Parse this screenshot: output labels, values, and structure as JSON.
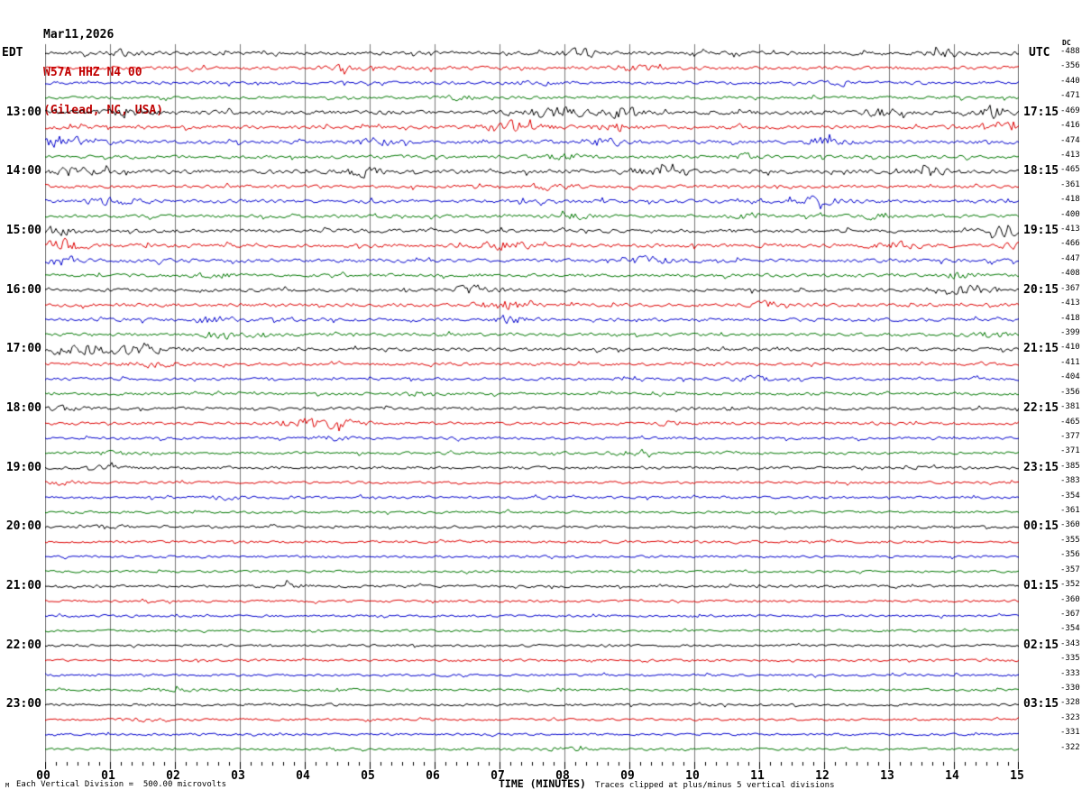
{
  "header": {
    "date": "Mar11,2026",
    "station": "W57A HHZ N4 00",
    "location": "(Gilead, NC, USA)"
  },
  "axes": {
    "left_tz": "EDT",
    "right_tz": "UTC",
    "dc_label": "DC",
    "x_title": "TIME (MINUTES)",
    "x_ticks": [
      "00",
      "01",
      "02",
      "03",
      "04",
      "05",
      "06",
      "07",
      "08",
      "09",
      "10",
      "11",
      "12",
      "13",
      "14",
      "15"
    ]
  },
  "footer": {
    "left_note": "Each Vertical Division =  500.00 microvolts",
    "right_note": "Traces clipped at plus/minus 5 vertical divisions",
    "corner_mark": "M"
  },
  "chart_data": {
    "type": "line",
    "subtype": "helicorder-seismogram",
    "title": "W57A HHZ N4 00 (Gilead, NC, USA) Mar11,2026",
    "xlabel": "TIME (MINUTES)",
    "x_range_minutes": [
      0,
      15
    ],
    "major_tick_minutes": 1,
    "minor_ticks_per_minute": 6,
    "row_duration_minutes": 15,
    "left_time_zone": "EDT",
    "right_time_zone": "UTC",
    "vertical_division_microvolts": 500.0,
    "clip_divisions": 5,
    "grid_color": "#787878",
    "trace_colors": {
      "black": "#000000",
      "red": "#dd0000",
      "blue": "#0000cc",
      "green": "#007700"
    },
    "rows": [
      {
        "edt": "",
        "utc": "",
        "dc": -488,
        "color": "black",
        "amp": 2.6,
        "events": [
          [
            1.2,
            2.2,
            0.15
          ],
          [
            8.3,
            1.8,
            0.2
          ],
          [
            13.9,
            1.6,
            0.15
          ]
        ]
      },
      {
        "edt": "",
        "utc": "",
        "dc": -356,
        "color": "red",
        "amp": 2.4,
        "events": [
          [
            4.6,
            1.5,
            0.2
          ],
          [
            9.0,
            1.2,
            0.3
          ]
        ]
      },
      {
        "edt": "",
        "utc": "",
        "dc": -440,
        "color": "blue",
        "amp": 2.2,
        "events": [
          [
            7.5,
            1.2,
            0.2
          ],
          [
            12.2,
            1.4,
            0.15
          ]
        ]
      },
      {
        "edt": "",
        "utc": "",
        "dc": -471,
        "color": "green",
        "amp": 2.0,
        "events": [
          [
            6.4,
            1.5,
            0.15
          ]
        ]
      },
      {
        "edt": "13:00",
        "utc": "17:15",
        "dc": -469,
        "color": "black",
        "amp": 2.8,
        "events": [
          [
            1.3,
            2.0,
            0.2
          ],
          [
            7.9,
            2.4,
            0.35
          ],
          [
            8.9,
            2.2,
            0.2
          ],
          [
            12.9,
            1.6,
            0.2
          ],
          [
            14.6,
            2.6,
            0.15
          ]
        ]
      },
      {
        "edt": "",
        "utc": "",
        "dc": -416,
        "color": "red",
        "amp": 2.6,
        "events": [
          [
            7.2,
            2.6,
            0.3
          ],
          [
            8.8,
            1.8,
            0.2
          ],
          [
            14.7,
            2.2,
            0.2
          ]
        ]
      },
      {
        "edt": "",
        "utc": "",
        "dc": -474,
        "color": "blue",
        "amp": 2.6,
        "events": [
          [
            0.3,
            2.6,
            0.25
          ],
          [
            5.1,
            1.6,
            0.2
          ],
          [
            8.6,
            1.8,
            0.25
          ],
          [
            12.0,
            1.8,
            0.2
          ]
        ]
      },
      {
        "edt": "",
        "utc": "",
        "dc": -413,
        "color": "green",
        "amp": 2.3,
        "events": [
          [
            8.0,
            1.5,
            0.2
          ],
          [
            10.8,
            1.6,
            0.15
          ]
        ]
      },
      {
        "edt": "14:00",
        "utc": "18:15",
        "dc": -465,
        "color": "black",
        "amp": 2.7,
        "events": [
          [
            0.5,
            1.8,
            0.3
          ],
          [
            4.9,
            2.0,
            0.2
          ],
          [
            9.4,
            1.6,
            0.3
          ],
          [
            13.6,
            1.8,
            0.25
          ]
        ]
      },
      {
        "edt": "",
        "utc": "",
        "dc": -361,
        "color": "red",
        "amp": 2.3,
        "events": [
          [
            7.7,
            1.4,
            0.3
          ]
        ]
      },
      {
        "edt": "",
        "utc": "",
        "dc": -418,
        "color": "blue",
        "amp": 2.5,
        "events": [
          [
            1.1,
            2.2,
            0.3
          ],
          [
            11.9,
            2.4,
            0.2
          ]
        ]
      },
      {
        "edt": "",
        "utc": "",
        "dc": -400,
        "color": "green",
        "amp": 2.2,
        "events": [
          [
            8.1,
            1.6,
            0.2
          ],
          [
            10.8,
            1.8,
            0.15
          ],
          [
            12.8,
            1.7,
            0.15
          ]
        ]
      },
      {
        "edt": "15:00",
        "utc": "19:15",
        "dc": -413,
        "color": "black",
        "amp": 2.5,
        "events": [
          [
            0.2,
            2.0,
            0.2
          ],
          [
            14.8,
            3.0,
            0.2
          ]
        ]
      },
      {
        "edt": "",
        "utc": "",
        "dc": -466,
        "color": "red",
        "amp": 2.6,
        "events": [
          [
            0.3,
            2.6,
            0.25
          ],
          [
            7.0,
            2.0,
            0.3
          ],
          [
            13.1,
            1.6,
            0.2
          ],
          [
            14.9,
            2.0,
            0.1
          ]
        ]
      },
      {
        "edt": "",
        "utc": "",
        "dc": -447,
        "color": "blue",
        "amp": 2.5,
        "events": [
          [
            0.2,
            2.4,
            0.2
          ],
          [
            9.3,
            1.6,
            0.25
          ]
        ]
      },
      {
        "edt": "",
        "utc": "",
        "dc": -408,
        "color": "green",
        "amp": 2.2,
        "events": [
          [
            2.6,
            1.5,
            0.2
          ],
          [
            14.1,
            1.8,
            0.2
          ]
        ]
      },
      {
        "edt": "16:00",
        "utc": "20:15",
        "dc": -367,
        "color": "black",
        "amp": 2.4,
        "events": [
          [
            6.6,
            2.0,
            0.25
          ],
          [
            14.3,
            2.4,
            0.25
          ]
        ]
      },
      {
        "edt": "",
        "utc": "",
        "dc": -413,
        "color": "red",
        "amp": 2.4,
        "events": [
          [
            7.1,
            1.8,
            0.3
          ],
          [
            11.2,
            1.6,
            0.25
          ]
        ]
      },
      {
        "edt": "",
        "utc": "",
        "dc": -418,
        "color": "blue",
        "amp": 2.3,
        "events": [
          [
            2.6,
            1.8,
            0.25
          ],
          [
            7.2,
            1.6,
            0.2
          ]
        ]
      },
      {
        "edt": "",
        "utc": "",
        "dc": -399,
        "color": "green",
        "amp": 2.2,
        "events": [
          [
            2.7,
            2.2,
            0.2
          ],
          [
            3.3,
            1.6,
            0.15
          ],
          [
            14.6,
            1.4,
            0.2
          ]
        ]
      },
      {
        "edt": "17:00",
        "utc": "21:15",
        "dc": -410,
        "color": "black",
        "amp": 2.4,
        "events": [
          [
            0.5,
            2.6,
            0.5
          ],
          [
            1.5,
            2.0,
            0.3
          ]
        ]
      },
      {
        "edt": "",
        "utc": "",
        "dc": -411,
        "color": "red",
        "amp": 2.1,
        "events": [
          [
            1.7,
            2.2,
            0.25
          ]
        ]
      },
      {
        "edt": "",
        "utc": "",
        "dc": -404,
        "color": "blue",
        "amp": 2.0,
        "events": [
          [
            10.9,
            1.5,
            0.2
          ]
        ]
      },
      {
        "edt": "",
        "utc": "",
        "dc": -356,
        "color": "green",
        "amp": 1.9,
        "events": [
          [
            5.7,
            1.3,
            0.2
          ]
        ]
      },
      {
        "edt": "18:00",
        "utc": "22:15",
        "dc": -381,
        "color": "black",
        "amp": 2.0,
        "events": [
          [
            0.3,
            1.5,
            0.2
          ],
          [
            10.6,
            1.4,
            0.2
          ]
        ]
      },
      {
        "edt": "",
        "utc": "",
        "dc": -465,
        "color": "red",
        "amp": 2.0,
        "events": [
          [
            4.1,
            3.4,
            0.35
          ],
          [
            4.6,
            2.0,
            0.2
          ],
          [
            9.7,
            1.6,
            0.15
          ]
        ]
      },
      {
        "edt": "",
        "utc": "",
        "dc": -377,
        "color": "blue",
        "amp": 1.9,
        "events": [
          [
            4.4,
            1.3,
            0.2
          ]
        ]
      },
      {
        "edt": "",
        "utc": "",
        "dc": -371,
        "color": "green",
        "amp": 1.9,
        "events": [
          [
            1.0,
            1.4,
            0.2
          ],
          [
            9.0,
            1.3,
            0.2
          ]
        ]
      },
      {
        "edt": "19:00",
        "utc": "23:15",
        "dc": -385,
        "color": "black",
        "amp": 2.0,
        "events": [
          [
            1.0,
            1.4,
            0.2
          ]
        ]
      },
      {
        "edt": "",
        "utc": "",
        "dc": -383,
        "color": "red",
        "amp": 1.8,
        "events": [
          [
            0.3,
            1.4,
            0.15
          ]
        ]
      },
      {
        "edt": "",
        "utc": "",
        "dc": -354,
        "color": "blue",
        "amp": 1.8,
        "events": [
          [
            2.8,
            1.2,
            0.2
          ]
        ]
      },
      {
        "edt": "",
        "utc": "",
        "dc": -361,
        "color": "green",
        "amp": 1.7,
        "events": []
      },
      {
        "edt": "20:00",
        "utc": "00:15",
        "dc": -360,
        "color": "black",
        "amp": 1.8,
        "events": [
          [
            1.0,
            1.3,
            0.2
          ]
        ]
      },
      {
        "edt": "",
        "utc": "",
        "dc": -355,
        "color": "red",
        "amp": 1.7,
        "events": []
      },
      {
        "edt": "",
        "utc": "",
        "dc": -356,
        "color": "blue",
        "amp": 1.7,
        "events": []
      },
      {
        "edt": "",
        "utc": "",
        "dc": -357,
        "color": "green",
        "amp": 1.6,
        "events": []
      },
      {
        "edt": "21:00",
        "utc": "01:15",
        "dc": -352,
        "color": "black",
        "amp": 1.8,
        "events": [
          [
            3.8,
            1.2,
            0.2
          ]
        ]
      },
      {
        "edt": "",
        "utc": "",
        "dc": -360,
        "color": "red",
        "amp": 1.7,
        "events": []
      },
      {
        "edt": "",
        "utc": "",
        "dc": -367,
        "color": "blue",
        "amp": 1.6,
        "events": []
      },
      {
        "edt": "",
        "utc": "",
        "dc": -354,
        "color": "green",
        "amp": 1.6,
        "events": []
      },
      {
        "edt": "22:00",
        "utc": "02:15",
        "dc": -343,
        "color": "black",
        "amp": 1.7,
        "events": []
      },
      {
        "edt": "",
        "utc": "",
        "dc": -335,
        "color": "red",
        "amp": 1.6,
        "events": []
      },
      {
        "edt": "",
        "utc": "",
        "dc": -333,
        "color": "blue",
        "amp": 1.6,
        "events": []
      },
      {
        "edt": "",
        "utc": "",
        "dc": -330,
        "color": "green",
        "amp": 1.6,
        "events": [
          [
            2.0,
            1.2,
            0.3
          ],
          [
            4.5,
            1.0,
            0.3
          ]
        ]
      },
      {
        "edt": "23:00",
        "utc": "03:15",
        "dc": -328,
        "color": "black",
        "amp": 1.7,
        "events": []
      },
      {
        "edt": "",
        "utc": "",
        "dc": -323,
        "color": "red",
        "amp": 1.6,
        "events": [
          [
            1.5,
            1.0,
            0.3
          ]
        ]
      },
      {
        "edt": "",
        "utc": "",
        "dc": -331,
        "color": "blue",
        "amp": 1.6,
        "events": []
      },
      {
        "edt": "",
        "utc": "",
        "dc": -322,
        "color": "green",
        "amp": 1.6,
        "events": [
          [
            8.0,
            1.0,
            0.3
          ]
        ]
      }
    ]
  }
}
